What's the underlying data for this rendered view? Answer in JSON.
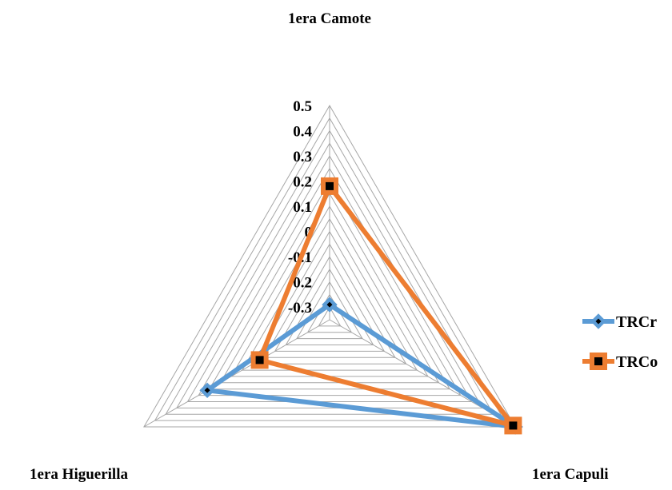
{
  "chart_data": {
    "type": "radar",
    "categories": [
      "1era Camote",
      "1era Capuli",
      "1era Higuerilla"
    ],
    "axis": {
      "min": -0.35,
      "max": 0.5,
      "tick_labels": [
        "0.5",
        "0.4",
        "0.3",
        "0.2",
        "0.1",
        "0",
        "-0.1",
        "-0.2",
        "-0.3"
      ],
      "tick_values": [
        0.5,
        0.4,
        0.3,
        0.2,
        0.1,
        0,
        -0.1,
        -0.2,
        -0.3
      ],
      "gridline_step": 0.05
    },
    "series": [
      {
        "name": "TRCr",
        "values": [
          -0.29,
          0.5,
          0.21
        ],
        "color": "#5b9bd5",
        "marker": "diamond"
      },
      {
        "name": "TRCo",
        "values": [
          0.18,
          0.49,
          -0.03
        ],
        "color": "#ed7d31",
        "marker": "square"
      }
    ],
    "legend": "right",
    "grid": true
  }
}
